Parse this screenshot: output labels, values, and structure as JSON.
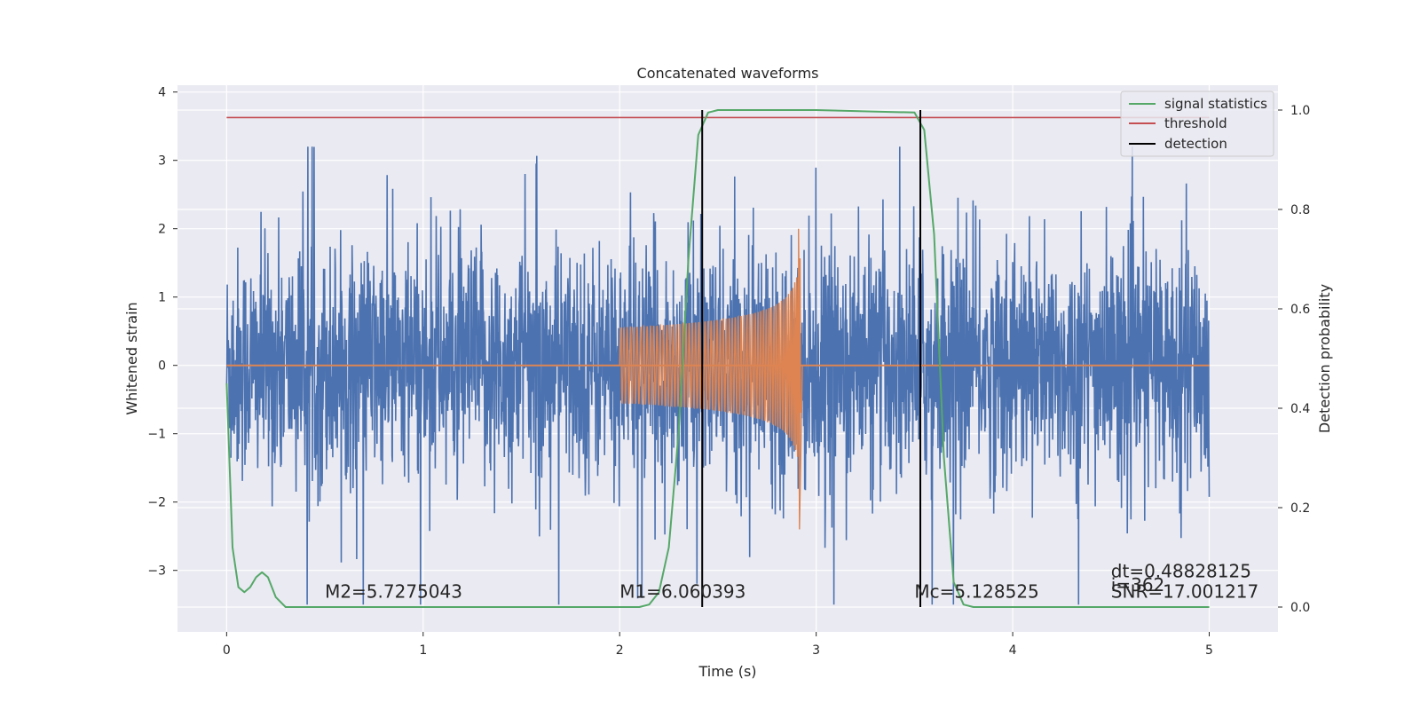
{
  "chart_data": {
    "type": "line",
    "title": "Concatenated waveforms",
    "xlabel": "Time (s)",
    "ylabel": "Whitened strain",
    "ylabel_right": "Detection probability",
    "xlim": [
      -0.25,
      5.35
    ],
    "ylim": [
      -3.9,
      4.1
    ],
    "ylim_right": [
      -0.05,
      1.05
    ],
    "x_ticks": [
      0,
      1,
      2,
      3,
      4,
      5
    ],
    "x_tick_labels": [
      "0",
      "1",
      "2",
      "3",
      "4",
      "5"
    ],
    "y_ticks": [
      -3,
      -2,
      -1,
      0,
      1,
      2,
      3,
      4
    ],
    "y_tick_labels": [
      "−3",
      "−2",
      "−1",
      "0",
      "1",
      "2",
      "3",
      "4"
    ],
    "y_right_ticks": [
      0.0,
      0.2,
      0.4,
      0.6,
      0.8,
      1.0
    ],
    "y_right_tick_labels": [
      "0.0",
      "0.2",
      "0.4",
      "0.6",
      "0.8",
      "1.0"
    ],
    "grid": true,
    "legend_position": "top-right",
    "legend": [
      {
        "label": "signal statistics",
        "color": "#55a868"
      },
      {
        "label": "threshold",
        "color": "#c44e52"
      },
      {
        "label": "detection",
        "color": "#000000"
      }
    ],
    "series": [
      {
        "name": "",
        "axis": "left",
        "kind": "noise",
        "color": "#4c72b0",
        "x_range": [
          0,
          5
        ],
        "amplitude_typical": 1.0,
        "amplitude_peak": 3.2
      },
      {
        "name": "",
        "axis": "left",
        "kind": "chirp",
        "color": "#dd8452",
        "x_range": [
          2.0,
          2.92
        ],
        "start_amplitude": 0.55,
        "peak_amplitude": 2.0,
        "min_amplitude": -2.4
      },
      {
        "name": "signal statistics",
        "axis": "right",
        "color": "#55a868",
        "x": [
          0.0,
          0.03,
          0.06,
          0.09,
          0.12,
          0.15,
          0.18,
          0.21,
          0.25,
          0.3,
          0.5,
          1.0,
          1.5,
          2.0,
          2.1,
          2.15,
          2.2,
          2.25,
          2.3,
          2.35,
          2.4,
          2.45,
          2.5,
          3.0,
          3.5,
          3.55,
          3.6,
          3.65,
          3.7,
          3.75,
          3.8,
          4.0,
          4.5,
          5.0
        ],
        "y": [
          0.45,
          0.12,
          0.04,
          0.03,
          0.04,
          0.06,
          0.07,
          0.06,
          0.02,
          0.0,
          0.0,
          0.0,
          0.0,
          0.0,
          0.0,
          0.005,
          0.03,
          0.12,
          0.35,
          0.7,
          0.95,
          0.995,
          1.0,
          1.0,
          0.995,
          0.96,
          0.75,
          0.3,
          0.05,
          0.005,
          0.0,
          0.0,
          0.0,
          0.0
        ]
      },
      {
        "name": "threshold",
        "axis": "right",
        "color": "#c44e52",
        "x": [
          0,
          5
        ],
        "y": [
          0.985,
          0.985
        ]
      },
      {
        "name": "detection",
        "axis": "left",
        "color": "#000000",
        "x_lines": [
          2.42,
          3.53
        ]
      }
    ],
    "annotations": [
      {
        "text": "M2=5.7275043",
        "x": 0.5,
        "y": -3.4
      },
      {
        "text": "M1=6.060393",
        "x": 2.0,
        "y": -3.4
      },
      {
        "text": "Mc=5.128525",
        "x": 3.5,
        "y": -3.4
      },
      {
        "text": "dt=0.48828125",
        "x": 4.5,
        "y": -3.1
      },
      {
        "text": " i=362",
        "x": 4.5,
        "y": -3.3
      },
      {
        "text": "SNR=17.001217",
        "x": 4.5,
        "y": -3.4
      }
    ]
  }
}
